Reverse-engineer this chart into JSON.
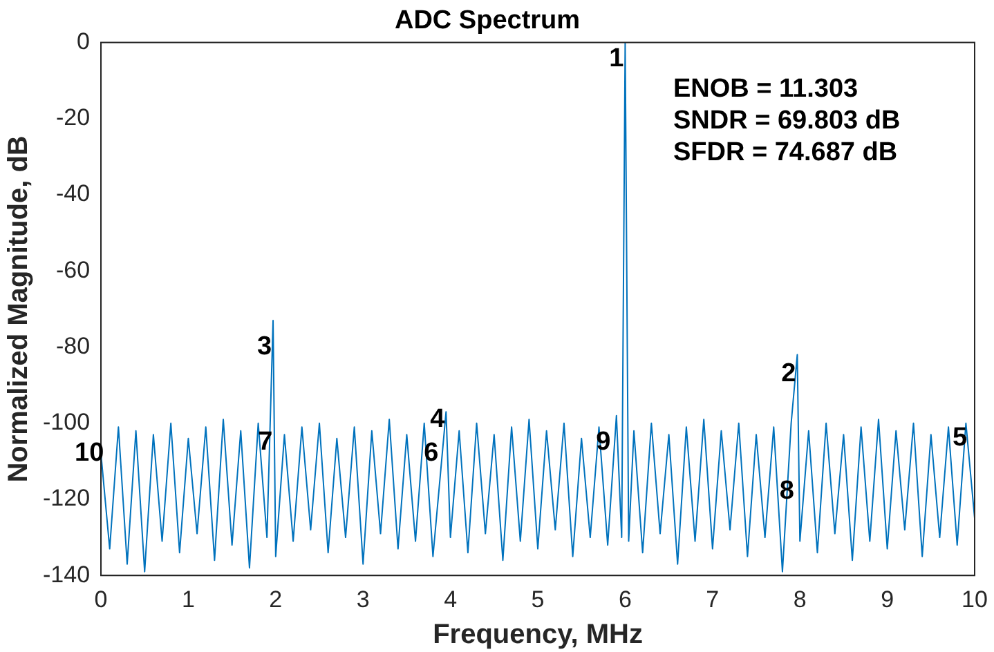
{
  "chart_data": {
    "type": "line",
    "title": "ADC Spectrum",
    "xlabel": "Frequency, MHz",
    "ylabel": "Normalized Magnitude, dB",
    "xlim": [
      0,
      10
    ],
    "xticks": [
      0,
      1,
      2,
      3,
      4,
      5,
      6,
      7,
      8,
      9,
      10
    ],
    "ylim": [
      -140,
      0
    ],
    "yticks": [
      -140,
      -120,
      -100,
      -80,
      -60,
      -40,
      -20,
      0
    ],
    "grid": false,
    "legend": false,
    "marker": "none",
    "line_style": "solid",
    "series": [
      {
        "color": "#0072bd",
        "x": [
          0.0,
          0.1,
          0.2,
          0.3,
          0.4,
          0.5,
          0.6,
          0.7,
          0.8,
          0.9,
          1.0,
          1.1,
          1.2,
          1.3,
          1.4,
          1.5,
          1.6,
          1.7,
          1.8,
          1.9,
          1.97,
          2.0,
          2.1,
          2.2,
          2.3,
          2.4,
          2.5,
          2.6,
          2.7,
          2.8,
          2.9,
          3.0,
          3.1,
          3.2,
          3.3,
          3.4,
          3.5,
          3.6,
          3.7,
          3.8,
          3.95,
          4.0,
          4.1,
          4.2,
          4.3,
          4.4,
          4.5,
          4.6,
          4.7,
          4.8,
          4.9,
          5.0,
          5.1,
          5.2,
          5.3,
          5.4,
          5.5,
          5.6,
          5.7,
          5.8,
          5.9,
          5.96,
          6.0,
          6.04,
          6.1,
          6.2,
          6.3,
          6.4,
          6.5,
          6.6,
          6.7,
          6.8,
          6.9,
          7.0,
          7.1,
          7.2,
          7.3,
          7.4,
          7.5,
          7.6,
          7.7,
          7.8,
          7.9,
          7.97,
          8.0,
          8.1,
          8.2,
          8.3,
          8.4,
          8.5,
          8.6,
          8.7,
          8.8,
          8.9,
          9.0,
          9.1,
          9.2,
          9.3,
          9.4,
          9.5,
          9.6,
          9.7,
          9.8,
          9.9,
          10.0
        ],
        "values": [
          -108,
          -133,
          -101,
          -137,
          -102,
          -139,
          -103,
          -131,
          -100,
          -134,
          -104,
          -129,
          -101,
          -136,
          -99,
          -132,
          -102,
          -138,
          -100,
          -130,
          -73,
          -135,
          -103,
          -131,
          -101,
          -128,
          -100,
          -134,
          -104,
          -130,
          -101,
          -137,
          -102,
          -129,
          -99,
          -133,
          -103,
          -131,
          -100,
          -135,
          -97,
          -130,
          -102,
          -134,
          -100,
          -129,
          -103,
          -136,
          -101,
          -131,
          -99,
          -133,
          -102,
          -128,
          -100,
          -135,
          -104,
          -130,
          -101,
          -132,
          -98,
          -130,
          0,
          -131,
          -102,
          -134,
          -100,
          -129,
          -103,
          -137,
          -101,
          -131,
          -99,
          -133,
          -102,
          -128,
          -100,
          -135,
          -103,
          -130,
          -101,
          -139,
          -100,
          -82,
          -131,
          -102,
          -134,
          -100,
          -129,
          -103,
          -136,
          -101,
          -131,
          -99,
          -133,
          -102,
          -128,
          -100,
          -135,
          -103,
          -130,
          -101,
          -132,
          -100,
          -125
        ]
      }
    ],
    "annotations": [
      "ENOB = 11.303",
      "SNDR = 69.803 dB",
      "SFDR = 74.687 dB",
      {
        "text": "1",
        "x": 6,
        "y": 0
      },
      {
        "text": "2",
        "x": 7.97,
        "y": -87
      },
      {
        "text": "3",
        "x": 1.97,
        "y": -80
      },
      {
        "text": "4",
        "x": 3.95,
        "y": -99
      },
      {
        "text": "5",
        "x": 9.93,
        "y": -104
      },
      {
        "text": "6",
        "x": 3.88,
        "y": -108
      },
      {
        "text": "7",
        "x": 1.98,
        "y": -105
      },
      {
        "text": "8",
        "x": 7.95,
        "y": -118
      },
      {
        "text": "9",
        "x": 5.85,
        "y": -105
      },
      {
        "text": "10",
        "x": 0.05,
        "y": -108
      }
    ]
  }
}
